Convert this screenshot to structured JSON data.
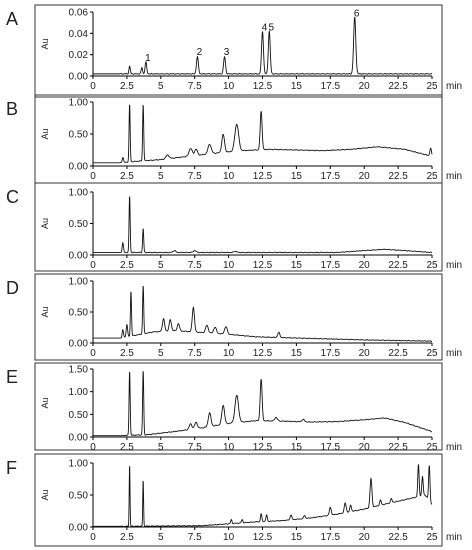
{
  "chart_data": [
    {
      "type": "line",
      "panel_label": "A",
      "ylabel": "Au",
      "xunit": "min",
      "xlim": [
        0,
        25
      ],
      "ylim": [
        0,
        0.06
      ],
      "xticks": [
        "0",
        "2.5",
        "5",
        "7.5",
        "10",
        "12.5",
        "15",
        "17.5",
        "20",
        "22.5",
        "25"
      ],
      "yticks": [
        "0.00",
        "0.02",
        "0.04",
        "0.06"
      ],
      "peak_labels": [
        {
          "text": "1",
          "x": 3.9,
          "y": 0.012
        },
        {
          "text": "2",
          "x": 7.7,
          "y": 0.018
        },
        {
          "text": "3",
          "x": 9.7,
          "y": 0.018
        },
        {
          "text": "4",
          "x": 12.5,
          "y": 0.041
        },
        {
          "text": "5",
          "x": 13.0,
          "y": 0.041
        },
        {
          "text": "6",
          "x": 19.3,
          "y": 0.054
        }
      ],
      "baseline": [
        [
          0,
          0.002
        ],
        [
          25,
          0.002
        ]
      ],
      "peaks": [
        {
          "x": 2.7,
          "y": 0.007,
          "w": 0.05
        },
        {
          "x": 3.6,
          "y": 0.006,
          "w": 0.05
        },
        {
          "x": 3.9,
          "y": 0.011,
          "w": 0.06
        },
        {
          "x": 7.7,
          "y": 0.016,
          "w": 0.07
        },
        {
          "x": 9.7,
          "y": 0.016,
          "w": 0.07
        },
        {
          "x": 12.5,
          "y": 0.04,
          "w": 0.07
        },
        {
          "x": 13.0,
          "y": 0.04,
          "w": 0.07
        },
        {
          "x": 19.3,
          "y": 0.053,
          "w": 0.08
        }
      ]
    },
    {
      "type": "line",
      "panel_label": "B",
      "ylabel": "Au",
      "xunit": "min",
      "xlim": [
        0,
        25
      ],
      "ylim": [
        0,
        1.0
      ],
      "xticks": [
        "0",
        "2.5",
        "5",
        "7.5",
        "10",
        "12.5",
        "15",
        "17.5",
        "20",
        "22.5",
        "25"
      ],
      "yticks": [
        "0.00",
        "0.50",
        "1.00"
      ],
      "baseline": [
        [
          2,
          0.05
        ],
        [
          3,
          0.07
        ],
        [
          5,
          0.1
        ],
        [
          7,
          0.15
        ],
        [
          9,
          0.2
        ],
        [
          11,
          0.24
        ],
        [
          13,
          0.26
        ],
        [
          15,
          0.25
        ],
        [
          17,
          0.24
        ],
        [
          19,
          0.26
        ],
        [
          21,
          0.3
        ],
        [
          23,
          0.26
        ],
        [
          25,
          0.15
        ]
      ],
      "peaks": [
        {
          "x": 2.2,
          "y": 0.08,
          "w": 0.05
        },
        {
          "x": 2.7,
          "y": 0.9,
          "w": 0.04
        },
        {
          "x": 3.7,
          "y": 0.88,
          "w": 0.04
        },
        {
          "x": 5.5,
          "y": 0.06,
          "w": 0.12
        },
        {
          "x": 7.2,
          "y": 0.12,
          "w": 0.12
        },
        {
          "x": 7.6,
          "y": 0.1,
          "w": 0.1
        },
        {
          "x": 8.6,
          "y": 0.15,
          "w": 0.12
        },
        {
          "x": 9.6,
          "y": 0.28,
          "w": 0.1
        },
        {
          "x": 10.6,
          "y": 0.42,
          "w": 0.14
        },
        {
          "x": 12.4,
          "y": 0.6,
          "w": 0.07
        },
        {
          "x": 24.9,
          "y": 0.12,
          "w": 0.06
        }
      ]
    },
    {
      "type": "line",
      "panel_label": "C",
      "ylabel": "Au",
      "xunit": "min",
      "xlim": [
        0,
        25
      ],
      "ylim": [
        0,
        1.0
      ],
      "xticks": [
        "0",
        "2.5",
        "5",
        "7.5",
        "10",
        "12.5",
        "15",
        "17.5",
        "20",
        "22.5",
        "25"
      ],
      "yticks": [
        "0.00",
        "0.50",
        "1.00"
      ],
      "baseline": [
        [
          2,
          0.04
        ],
        [
          18,
          0.04
        ],
        [
          20,
          0.07
        ],
        [
          21.5,
          0.09
        ],
        [
          23,
          0.07
        ],
        [
          25,
          0.04
        ]
      ],
      "peaks": [
        {
          "x": 2.2,
          "y": 0.15,
          "w": 0.05
        },
        {
          "x": 2.7,
          "y": 0.9,
          "w": 0.04
        },
        {
          "x": 3.7,
          "y": 0.38,
          "w": 0.04
        },
        {
          "x": 6.0,
          "y": 0.03,
          "w": 0.1
        },
        {
          "x": 7.5,
          "y": 0.03,
          "w": 0.1
        },
        {
          "x": 10.5,
          "y": 0.02,
          "w": 0.1
        }
      ]
    },
    {
      "type": "line",
      "panel_label": "D",
      "ylabel": "Au",
      "xunit": "min",
      "xlim": [
        0,
        25
      ],
      "ylim": [
        0,
        1.0
      ],
      "xticks": [
        "0",
        "2.5",
        "5",
        "7.5",
        "10",
        "12.5",
        "15",
        "17.5",
        "20",
        "22.5",
        "25"
      ],
      "yticks": [
        "0.00",
        "0.50",
        "1.00"
      ],
      "baseline": [
        [
          2,
          0.08
        ],
        [
          3,
          0.12
        ],
        [
          4.5,
          0.18
        ],
        [
          6,
          0.2
        ],
        [
          8,
          0.17
        ],
        [
          10,
          0.14
        ],
        [
          12,
          0.1
        ],
        [
          15,
          0.08
        ],
        [
          20,
          0.05
        ],
        [
          25,
          0.03
        ]
      ],
      "peaks": [
        {
          "x": 2.2,
          "y": 0.12,
          "w": 0.05
        },
        {
          "x": 2.5,
          "y": 0.2,
          "w": 0.05
        },
        {
          "x": 2.8,
          "y": 0.72,
          "w": 0.04
        },
        {
          "x": 3.7,
          "y": 0.78,
          "w": 0.04
        },
        {
          "x": 5.2,
          "y": 0.2,
          "w": 0.08
        },
        {
          "x": 5.7,
          "y": 0.18,
          "w": 0.08
        },
        {
          "x": 6.3,
          "y": 0.12,
          "w": 0.08
        },
        {
          "x": 7.4,
          "y": 0.4,
          "w": 0.08
        },
        {
          "x": 8.4,
          "y": 0.12,
          "w": 0.1
        },
        {
          "x": 9.0,
          "y": 0.1,
          "w": 0.1
        },
        {
          "x": 9.8,
          "y": 0.12,
          "w": 0.1
        },
        {
          "x": 13.7,
          "y": 0.08,
          "w": 0.08
        }
      ]
    },
    {
      "type": "line",
      "panel_label": "E",
      "ylabel": "Au",
      "xunit": "min",
      "xlim": [
        0,
        25
      ],
      "ylim": [
        0,
        1.5
      ],
      "xticks": [
        "0",
        "2.5",
        "5",
        "7.5",
        "10",
        "12.5",
        "15",
        "17.5",
        "20",
        "22.5",
        "25"
      ],
      "yticks": [
        "0.00",
        "0.50",
        "1.00",
        "1.50"
      ],
      "baseline": [
        [
          2,
          0.03
        ],
        [
          4,
          0.05
        ],
        [
          6,
          0.12
        ],
        [
          8,
          0.2
        ],
        [
          10,
          0.3
        ],
        [
          12,
          0.36
        ],
        [
          14,
          0.35
        ],
        [
          16,
          0.33
        ],
        [
          18,
          0.34
        ],
        [
          20,
          0.38
        ],
        [
          21.5,
          0.42
        ],
        [
          23,
          0.32
        ],
        [
          25,
          0.12
        ]
      ],
      "peaks": [
        {
          "x": 2.7,
          "y": 1.42,
          "w": 0.04
        },
        {
          "x": 3.7,
          "y": 1.42,
          "w": 0.04
        },
        {
          "x": 7.2,
          "y": 0.12,
          "w": 0.1
        },
        {
          "x": 7.6,
          "y": 0.14,
          "w": 0.1
        },
        {
          "x": 8.6,
          "y": 0.3,
          "w": 0.1
        },
        {
          "x": 9.6,
          "y": 0.42,
          "w": 0.1
        },
        {
          "x": 10.6,
          "y": 0.6,
          "w": 0.13
        },
        {
          "x": 12.4,
          "y": 0.92,
          "w": 0.07
        },
        {
          "x": 13.5,
          "y": 0.08,
          "w": 0.1
        },
        {
          "x": 15.5,
          "y": 0.05,
          "w": 0.1
        }
      ]
    },
    {
      "type": "line",
      "panel_label": "F",
      "ylabel": "Au",
      "xunit": "min",
      "xlim": [
        0,
        25
      ],
      "ylim": [
        0,
        1.0
      ],
      "xticks": [
        "0",
        "2.5",
        "5",
        "7.5",
        "10",
        "12.5",
        "15",
        "17.5",
        "20",
        "22.5",
        "25"
      ],
      "yticks": [
        "0.00",
        "0.50",
        "1.00"
      ],
      "baseline": [
        [
          2,
          0.01
        ],
        [
          8,
          0.02
        ],
        [
          10,
          0.05
        ],
        [
          12,
          0.08
        ],
        [
          14,
          0.1
        ],
        [
          16,
          0.14
        ],
        [
          18,
          0.2
        ],
        [
          20,
          0.28
        ],
        [
          22,
          0.38
        ],
        [
          23.5,
          0.45
        ],
        [
          24.5,
          0.5
        ],
        [
          25,
          0.35
        ]
      ],
      "peaks": [
        {
          "x": 2.7,
          "y": 0.96,
          "w": 0.03
        },
        {
          "x": 3.7,
          "y": 0.72,
          "w": 0.03
        },
        {
          "x": 10.2,
          "y": 0.06,
          "w": 0.05
        },
        {
          "x": 11.0,
          "y": 0.05,
          "w": 0.05
        },
        {
          "x": 12.4,
          "y": 0.12,
          "w": 0.05
        },
        {
          "x": 12.8,
          "y": 0.1,
          "w": 0.05
        },
        {
          "x": 14.6,
          "y": 0.08,
          "w": 0.06
        },
        {
          "x": 15.6,
          "y": 0.05,
          "w": 0.06
        },
        {
          "x": 17.5,
          "y": 0.12,
          "w": 0.07
        },
        {
          "x": 18.6,
          "y": 0.15,
          "w": 0.07
        },
        {
          "x": 19.0,
          "y": 0.1,
          "w": 0.06
        },
        {
          "x": 20.5,
          "y": 0.45,
          "w": 0.07
        },
        {
          "x": 21.2,
          "y": 0.08,
          "w": 0.06
        },
        {
          "x": 22.0,
          "y": 0.06,
          "w": 0.06
        },
        {
          "x": 24.0,
          "y": 0.5,
          "w": 0.05
        },
        {
          "x": 24.3,
          "y": 0.3,
          "w": 0.05
        },
        {
          "x": 24.8,
          "y": 0.55,
          "w": 0.05
        }
      ]
    }
  ]
}
